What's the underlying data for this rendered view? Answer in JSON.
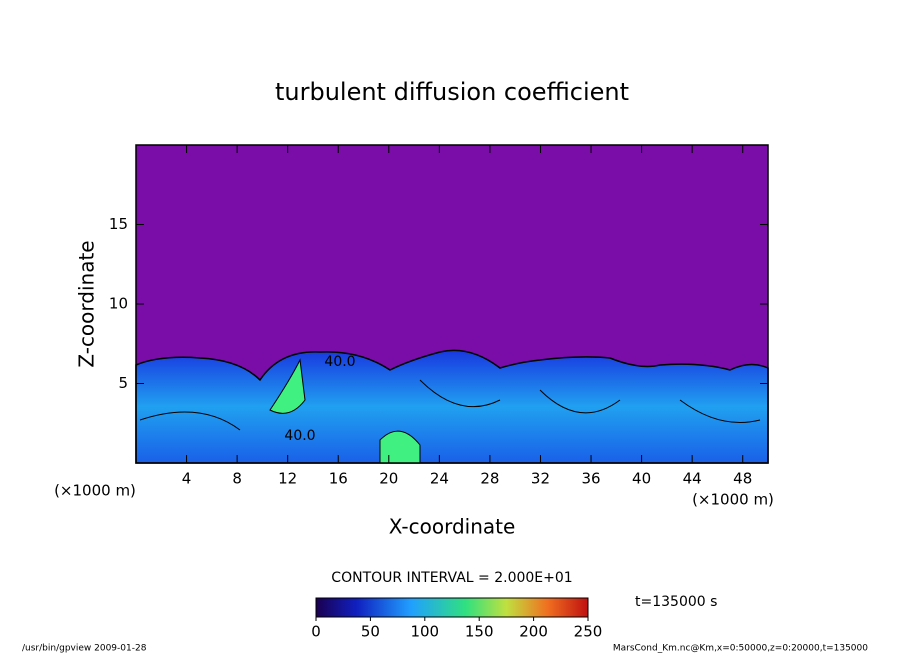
{
  "chart_data": {
    "type": "contour",
    "title": "turbulent diffusion coefficient",
    "x_label": "X-coordinate",
    "y_label": "Z-coordinate",
    "x_unit": "(×1000 m)",
    "y_unit": "(×1000 m)",
    "xlim": [
      0,
      50
    ],
    "xticks": [
      4,
      8,
      12,
      16,
      20,
      24,
      28,
      32,
      36,
      40,
      44,
      48
    ],
    "ylim": [
      0,
      20
    ],
    "yticks": [
      5,
      10,
      15
    ],
    "contour_labels": [
      "40.0",
      "40.0"
    ],
    "contour_interval": "CONTOUR INTERVAL = 2.000E+01",
    "time_label": "t=135000 s",
    "colorbar_lim": [
      0,
      250
    ],
    "colorbar_ticks": [
      0,
      50,
      100,
      150,
      200,
      250
    ],
    "footer_left": "/usr/bin/gpview  2009-01-28",
    "footer_right": "MarsCond_Km.nc@Km,x=0:50000,z=0:20000,t=135000"
  }
}
